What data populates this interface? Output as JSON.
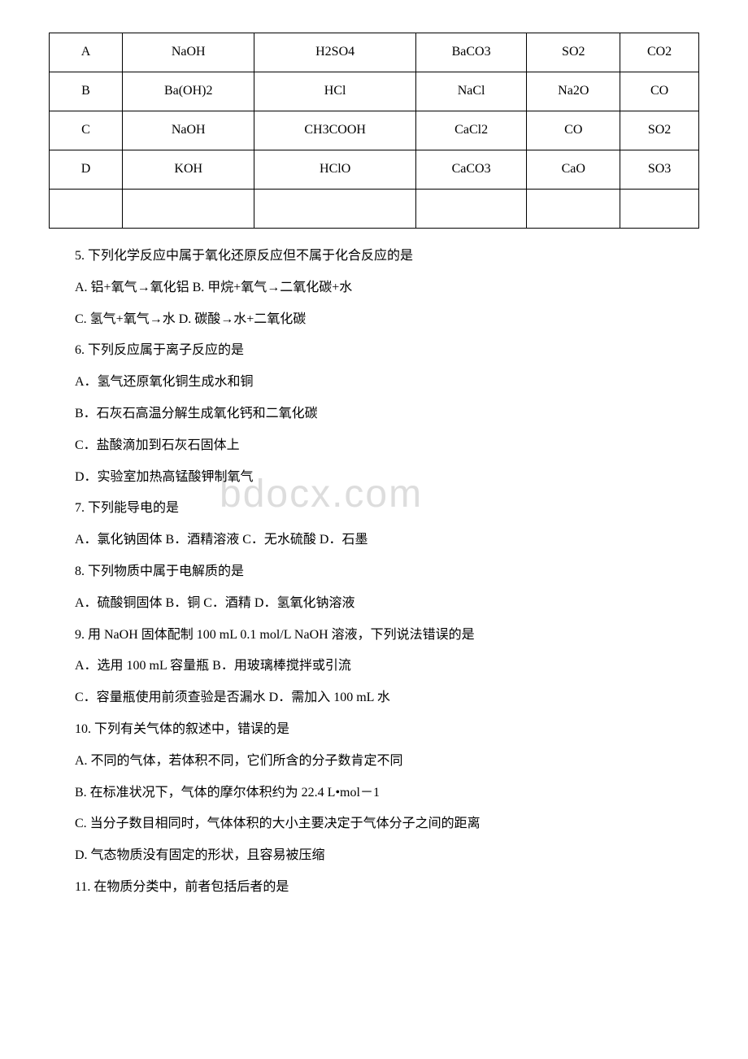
{
  "table": {
    "rows": [
      {
        "label": "A",
        "c1": "NaOH",
        "c2": "H2SO4",
        "c3": "BaCO3",
        "c4": "SO2",
        "c5": "CO2"
      },
      {
        "label": "B",
        "c1": "Ba(OH)2",
        "c2": "HCl",
        "c3": "NaCl",
        "c4": "Na2O",
        "c5": "CO"
      },
      {
        "label": "C",
        "c1": "NaOH",
        "c2": "CH3COOH",
        "c3": "CaCl2",
        "c4": "CO",
        "c5": "SO2"
      },
      {
        "label": "D",
        "c1": "KOH",
        "c2": "HClO",
        "c3": "CaCO3",
        "c4": "CaO",
        "c5": "SO3"
      }
    ]
  },
  "questions": {
    "q5": {
      "text": "5. 下列化学反应中属于氧化还原反应但不属于化合反应的是",
      "a": "A. 铝+氧气→氧化铝  B. 甲烷+氧气→二氧化碳+水",
      "b": "C. 氢气+氧气→水  D. 碳酸→水+二氧化碳"
    },
    "q6": {
      "text": "6. 下列反应属于离子反应的是",
      "a": "A．氢气还原氧化铜生成水和铜",
      "b": "B．石灰石高温分解生成氧化钙和二氧化碳",
      "c": "C．盐酸滴加到石灰石固体上",
      "d": "D．实验室加热高锰酸钾制氧气"
    },
    "q7": {
      "text": "7. 下列能导电的是",
      "a": "A．氯化钠固体  B．酒精溶液   C．无水硫酸  D．石墨"
    },
    "q8": {
      "text": "8. 下列物质中属于电解质的是",
      "a": "A．硫酸铜固体  B．铜  C．酒精 D．氢氧化钠溶液"
    },
    "q9": {
      "text": "9. 用 NaOH 固体配制 100 mL 0.1 mol/L NaOH 溶液，下列说法错误的是",
      "a": "A．选用 100 mL 容量瓶 B．用玻璃棒搅拌或引流",
      "b": "C．容量瓶使用前须查验是否漏水 D．需加入 100 mL 水"
    },
    "q10": {
      "text": "10. 下列有关气体的叙述中，错误的是",
      "a": "A. 不同的气体，若体积不同，它们所含的分子数肯定不同",
      "b": "B. 在标准状况下，气体的摩尔体积约为 22.4 L•mol－1",
      "c": "C. 当分子数目相同时，气体体积的大小主要决定于气体分子之间的距离",
      "d": "D. 气态物质没有固定的形状，且容易被压缩"
    },
    "q11": {
      "text": "11. 在物质分类中，前者包括后者的是"
    }
  },
  "watermark": "bdocx.com"
}
